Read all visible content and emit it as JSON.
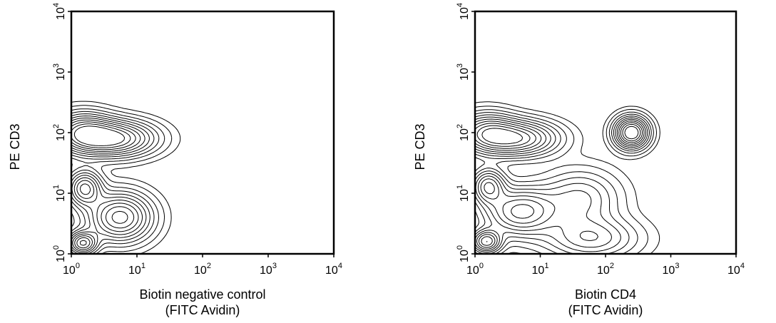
{
  "chart_data": [
    {
      "type": "contour",
      "xlabel_line1": "Biotin negative control",
      "xlabel_line2": "(FITC Avidin)",
      "ylabel": "PE CD3",
      "x_scale": "log",
      "y_scale": "log",
      "xlim": [
        1,
        10000
      ],
      "ylim": [
        1,
        10000
      ],
      "x_ticks": [
        {
          "base": "10",
          "exp": "0"
        },
        {
          "base": "10",
          "exp": "1"
        },
        {
          "base": "10",
          "exp": "2"
        },
        {
          "base": "10",
          "exp": "3"
        },
        {
          "base": "10",
          "exp": "4"
        }
      ],
      "y_ticks": [
        {
          "base": "10",
          "exp": "0"
        },
        {
          "base": "10",
          "exp": "1"
        },
        {
          "base": "10",
          "exp": "2"
        },
        {
          "base": "10",
          "exp": "3"
        },
        {
          "base": "10",
          "exp": "4"
        }
      ],
      "grid": false,
      "populations": [
        {
          "x": 4.5,
          "y": 80,
          "sx": 0.38,
          "sy": 0.18,
          "w": 1.0
        },
        {
          "x": 1.5,
          "y": 100,
          "sx": 0.28,
          "sy": 0.2,
          "w": 0.8
        },
        {
          "x": 1.6,
          "y": 12,
          "sx": 0.16,
          "sy": 0.18,
          "w": 0.75
        },
        {
          "x": 5.5,
          "y": 4,
          "sx": 0.3,
          "sy": 0.25,
          "w": 0.9
        },
        {
          "x": 1.5,
          "y": 1.5,
          "sx": 0.14,
          "sy": 0.12,
          "w": 0.85
        }
      ]
    },
    {
      "type": "contour",
      "xlabel_line1": "Biotin CD4",
      "xlabel_line2": "(FITC Avidin)",
      "ylabel": "PE CD3",
      "x_scale": "log",
      "y_scale": "log",
      "xlim": [
        1,
        10000
      ],
      "ylim": [
        1,
        10000
      ],
      "x_ticks": [
        {
          "base": "10",
          "exp": "0"
        },
        {
          "base": "10",
          "exp": "1"
        },
        {
          "base": "10",
          "exp": "2"
        },
        {
          "base": "10",
          "exp": "3"
        },
        {
          "base": "10",
          "exp": "4"
        }
      ],
      "y_ticks": [
        {
          "base": "10",
          "exp": "0"
        },
        {
          "base": "10",
          "exp": "1"
        },
        {
          "base": "10",
          "exp": "2"
        },
        {
          "base": "10",
          "exp": "3"
        },
        {
          "base": "10",
          "exp": "4"
        }
      ],
      "grid": false,
      "populations": [
        {
          "x": 4.5,
          "y": 80,
          "sx": 0.38,
          "sy": 0.18,
          "w": 0.9
        },
        {
          "x": 1.5,
          "y": 100,
          "sx": 0.28,
          "sy": 0.2,
          "w": 0.7
        },
        {
          "x": 1.6,
          "y": 13,
          "sx": 0.16,
          "sy": 0.18,
          "w": 0.7
        },
        {
          "x": 5,
          "y": 5,
          "sx": 0.35,
          "sy": 0.25,
          "w": 0.75
        },
        {
          "x": 1.5,
          "y": 1.6,
          "sx": 0.14,
          "sy": 0.12,
          "w": 0.8
        },
        {
          "x": 250,
          "y": 100,
          "sx": 0.16,
          "sy": 0.16,
          "w": 1.2
        },
        {
          "x": 40,
          "y": 8,
          "sx": 0.38,
          "sy": 0.3,
          "w": 0.4
        },
        {
          "x": 60,
          "y": 1.8,
          "sx": 0.45,
          "sy": 0.22,
          "w": 0.45
        }
      ]
    }
  ]
}
